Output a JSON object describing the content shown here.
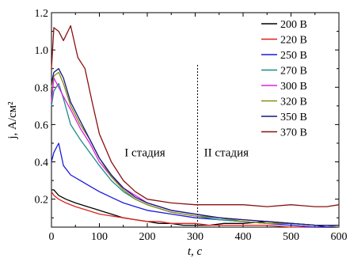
{
  "chart_data": {
    "type": "line",
    "title": "",
    "xlabel": "t, с",
    "ylabel": "j, А/см²",
    "xlim": [
      0,
      600
    ],
    "ylim": [
      0.05,
      1.2
    ],
    "xticks": [
      "0",
      "100",
      "200",
      "300",
      "400",
      "500",
      "600"
    ],
    "yticks": [
      "0.2",
      "0.4",
      "0.6",
      "0.8",
      "1.0",
      "1.2"
    ],
    "grid": false,
    "legend_position": "top-right",
    "annotations": [
      {
        "text": "I стадия",
        "x": 195,
        "y": 0.45
      },
      {
        "text": "II стадия",
        "x": 365,
        "y": 0.45
      }
    ],
    "vline_x": 305,
    "series": [
      {
        "name": "200 В",
        "color": "#000000",
        "x": [
          0,
          5,
          15,
          30,
          50,
          75,
          100,
          125,
          150,
          175,
          200,
          225,
          250,
          275,
          300,
          330,
          360,
          400,
          450,
          500,
          550,
          575,
          600
        ],
        "y": [
          0.25,
          0.25,
          0.22,
          0.2,
          0.18,
          0.16,
          0.14,
          0.12,
          0.1,
          0.09,
          0.08,
          0.07,
          0.07,
          0.06,
          0.06,
          0.06,
          0.07,
          0.07,
          0.08,
          0.07,
          0.06,
          0.05,
          0.05
        ]
      },
      {
        "name": "220 В",
        "color": "#e0201a",
        "x": [
          0,
          5,
          15,
          30,
          50,
          75,
          100,
          125,
          150,
          175,
          200,
          225,
          250,
          275,
          300,
          330,
          360,
          400,
          450,
          500,
          550,
          575,
          600
        ],
        "y": [
          0.24,
          0.22,
          0.2,
          0.18,
          0.16,
          0.14,
          0.12,
          0.11,
          0.1,
          0.09,
          0.08,
          0.08,
          0.07,
          0.07,
          0.07,
          0.06,
          0.06,
          0.06,
          0.06,
          0.05,
          0.05,
          0.05,
          0.05
        ]
      },
      {
        "name": "250 В",
        "color": "#1a1ae0",
        "x": [
          0,
          5,
          15,
          25,
          40,
          60,
          80,
          100,
          125,
          150,
          175,
          200,
          250,
          300,
          350,
          400,
          450,
          500,
          550,
          575,
          600
        ],
        "y": [
          0.4,
          0.45,
          0.5,
          0.38,
          0.33,
          0.3,
          0.27,
          0.24,
          0.21,
          0.18,
          0.16,
          0.14,
          0.12,
          0.1,
          0.09,
          0.08,
          0.07,
          0.06,
          0.05,
          0.05,
          0.05
        ]
      },
      {
        "name": "270 В",
        "color": "#1a8a8a",
        "x": [
          0,
          5,
          15,
          25,
          40,
          60,
          80,
          100,
          125,
          150,
          175,
          200,
          250,
          300,
          350,
          400,
          450,
          500,
          550,
          575,
          600
        ],
        "y": [
          0.7,
          0.78,
          0.82,
          0.74,
          0.6,
          0.52,
          0.45,
          0.38,
          0.3,
          0.24,
          0.2,
          0.17,
          0.13,
          0.11,
          0.09,
          0.08,
          0.07,
          0.07,
          0.06,
          0.06,
          0.05
        ]
      },
      {
        "name": "300 В",
        "color": "#e020e0",
        "x": [
          0,
          5,
          15,
          25,
          40,
          60,
          80,
          100,
          125,
          150,
          175,
          200,
          250,
          300,
          350,
          400,
          450,
          500,
          550,
          575,
          600
        ],
        "y": [
          0.72,
          0.85,
          0.8,
          0.75,
          0.68,
          0.58,
          0.5,
          0.4,
          0.32,
          0.26,
          0.22,
          0.18,
          0.14,
          0.12,
          0.1,
          0.09,
          0.08,
          0.07,
          0.06,
          0.06,
          0.05
        ]
      },
      {
        "name": "320 В",
        "color": "#8a8a10",
        "x": [
          0,
          5,
          15,
          25,
          40,
          60,
          80,
          100,
          125,
          150,
          175,
          200,
          250,
          300,
          350,
          400,
          450,
          500,
          550,
          575,
          600
        ],
        "y": [
          0.8,
          0.86,
          0.88,
          0.82,
          0.7,
          0.6,
          0.52,
          0.42,
          0.32,
          0.25,
          0.2,
          0.17,
          0.13,
          0.11,
          0.1,
          0.08,
          0.07,
          0.07,
          0.06,
          0.06,
          0.05
        ]
      },
      {
        "name": "350 В",
        "color": "#101a80",
        "x": [
          0,
          5,
          15,
          25,
          40,
          60,
          80,
          100,
          125,
          150,
          175,
          200,
          250,
          300,
          350,
          400,
          450,
          500,
          550,
          575,
          600
        ],
        "y": [
          0.82,
          0.88,
          0.9,
          0.85,
          0.72,
          0.62,
          0.52,
          0.42,
          0.33,
          0.26,
          0.21,
          0.18,
          0.14,
          0.12,
          0.1,
          0.09,
          0.08,
          0.07,
          0.06,
          0.06,
          0.06
        ]
      },
      {
        "name": "370 В",
        "color": "#8a1010",
        "x": [
          0,
          5,
          15,
          25,
          40,
          55,
          70,
          85,
          100,
          125,
          150,
          175,
          200,
          250,
          300,
          350,
          400,
          450,
          500,
          550,
          575,
          600
        ],
        "y": [
          0.9,
          1.12,
          1.1,
          1.05,
          1.13,
          0.96,
          0.9,
          0.72,
          0.55,
          0.4,
          0.3,
          0.24,
          0.2,
          0.18,
          0.17,
          0.17,
          0.17,
          0.16,
          0.17,
          0.16,
          0.16,
          0.17
        ]
      }
    ]
  }
}
